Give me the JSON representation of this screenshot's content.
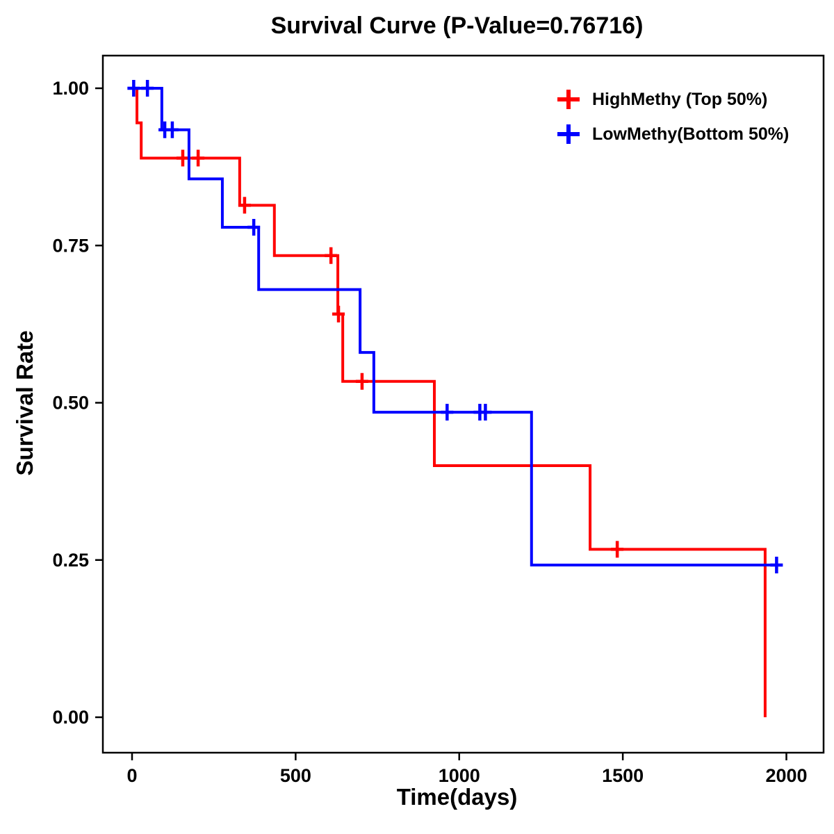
{
  "chart_data": {
    "type": "line",
    "subtype": "kaplan-meier-step-survival",
    "title": "Survival Curve (P-Value=0.76716)",
    "p_value": "0.76716",
    "xlabel": "Time(days)",
    "ylabel": "Survival Rate",
    "xlim": [
      -90,
      2090
    ],
    "ylim": [
      -0.05,
      1.05
    ],
    "xticks": [
      0,
      500,
      1000,
      1500,
      2000
    ],
    "yticks": [
      0,
      0.25,
      0.5,
      0.75,
      1
    ],
    "grid": false,
    "legend_position": "top-right-inside",
    "series": [
      {
        "name": "HighMethy (Top 50%)",
        "color": "#FF0000",
        "steps": [
          [
            0,
            1.0
          ],
          [
            15,
            0.945
          ],
          [
            28,
            0.889
          ],
          [
            329,
            0.814
          ],
          [
            435,
            0.734
          ],
          [
            629,
            0.641
          ],
          [
            644,
            0.534
          ],
          [
            924,
            0.4
          ],
          [
            1400,
            0.267
          ],
          [
            1935,
            0.0
          ]
        ],
        "censors": [
          [
            155,
            0.889
          ],
          [
            202,
            0.889
          ],
          [
            344,
            0.814
          ],
          [
            608,
            0.734
          ],
          [
            631,
            0.641
          ],
          [
            703,
            0.534
          ],
          [
            1483,
            0.267
          ]
        ]
      },
      {
        "name": "LowMethy(Bottom 50%)",
        "color": "#0000FF",
        "steps": [
          [
            0,
            1.0
          ],
          [
            91,
            0.934
          ],
          [
            174,
            0.856
          ],
          [
            276,
            0.779
          ],
          [
            387,
            0.68
          ],
          [
            697,
            0.58
          ],
          [
            739,
            0.485
          ],
          [
            1221,
            0.242
          ]
        ],
        "end_time": 1974,
        "censors": [
          [
            5,
            1.0
          ],
          [
            47,
            1.0
          ],
          [
            100,
            0.934
          ],
          [
            123,
            0.934
          ],
          [
            372,
            0.779
          ],
          [
            963,
            0.485
          ],
          [
            1063,
            0.485
          ],
          [
            1080,
            0.485
          ],
          [
            1970,
            0.242
          ]
        ]
      }
    ]
  }
}
